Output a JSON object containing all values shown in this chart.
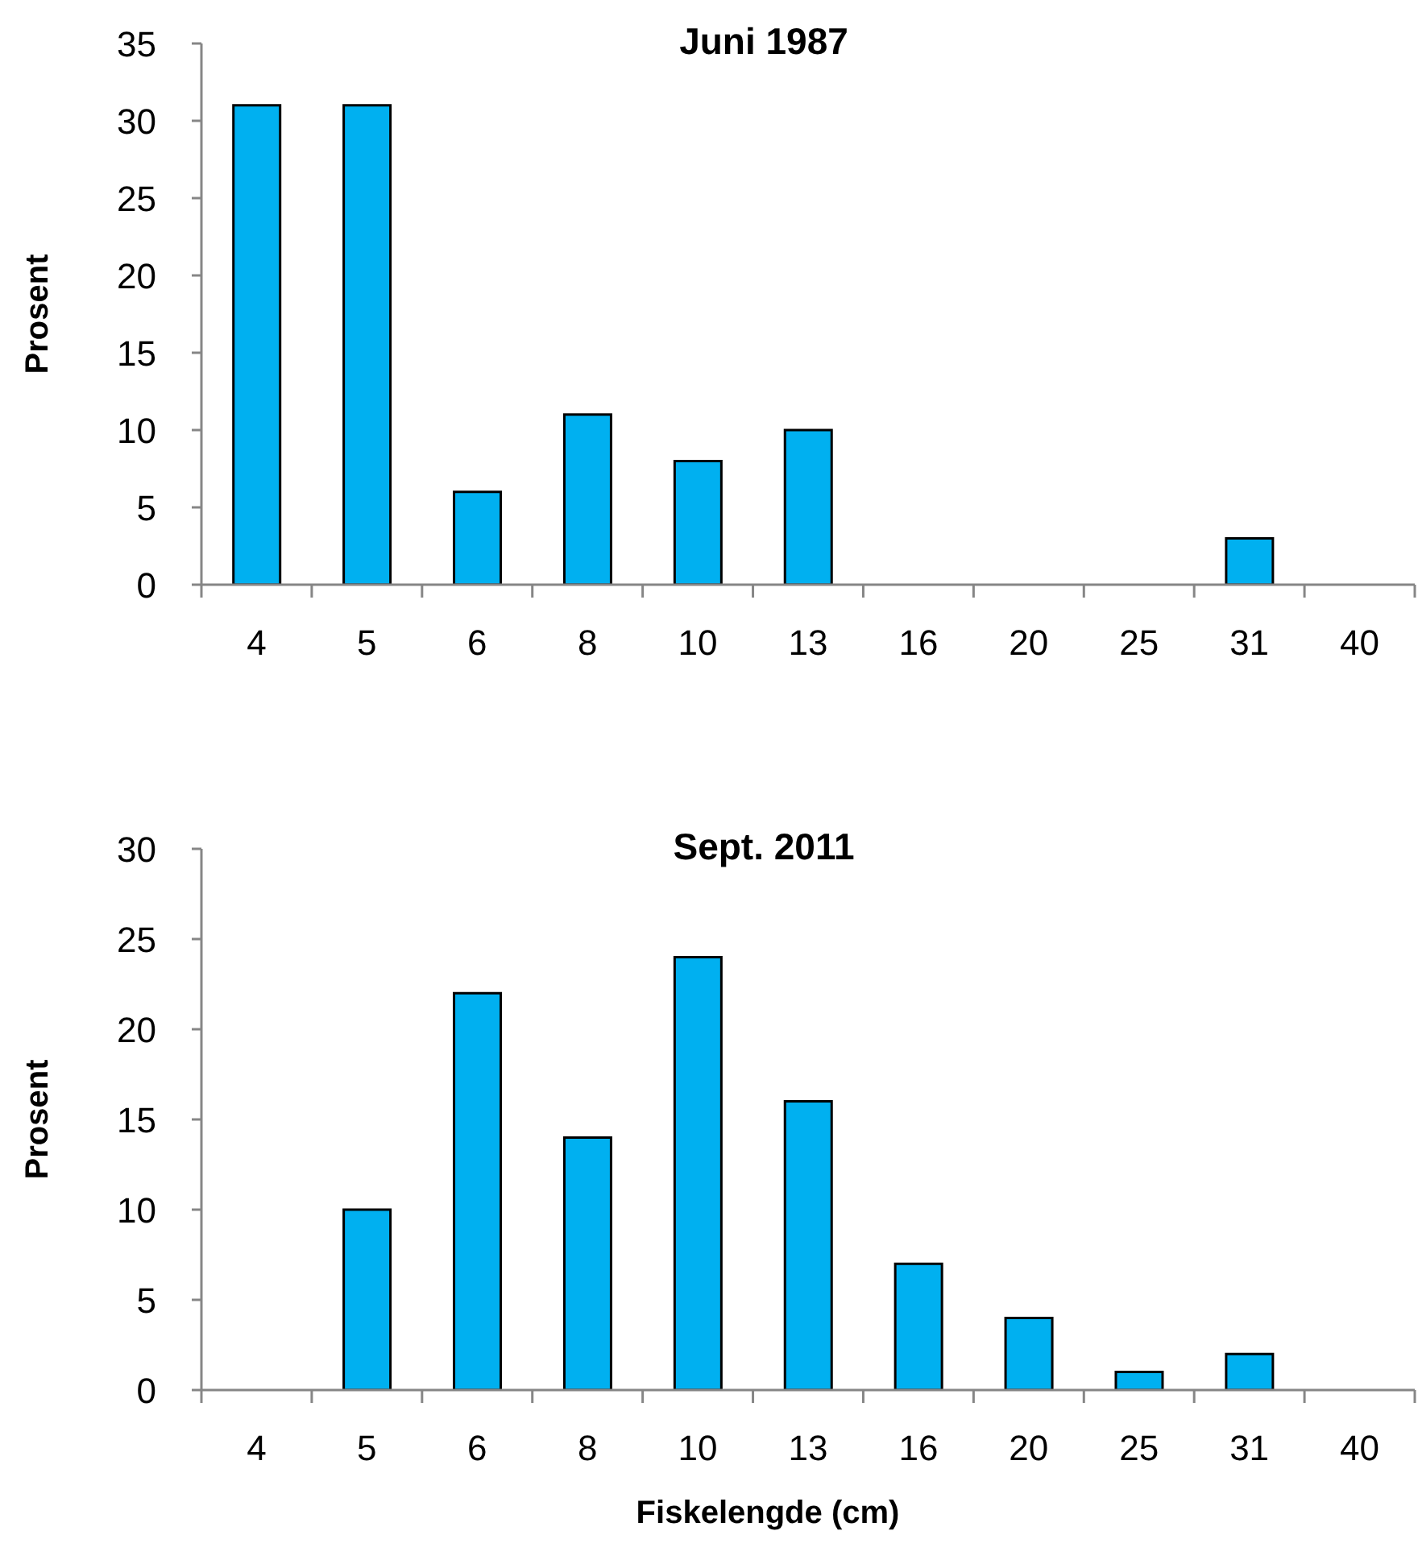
{
  "chart_data": [
    {
      "type": "bar",
      "title": "Juni 1987",
      "ylabel": "Prosent",
      "categories": [
        "4",
        "5",
        "6",
        "8",
        "10",
        "13",
        "16",
        "20",
        "25",
        "31",
        "40"
      ],
      "values": [
        31,
        31,
        6,
        11,
        8,
        10,
        0,
        0,
        0,
        3,
        0
      ],
      "color": "#00b0f0",
      "ylim": [
        0,
        35
      ],
      "yticks": [
        0,
        5,
        10,
        15,
        20,
        25,
        30,
        35
      ]
    },
    {
      "type": "bar",
      "title": "Sept. 2011",
      "ylabel": "Prosent",
      "xlabel": "Fiskelengde (cm)",
      "categories": [
        "4",
        "5",
        "6",
        "8",
        "10",
        "13",
        "16",
        "20",
        "25",
        "31",
        "40"
      ],
      "values": [
        0,
        10,
        22,
        14,
        24,
        16,
        7,
        4,
        1,
        2,
        0
      ],
      "color": "#00b0f0",
      "ylim": [
        0,
        30
      ],
      "yticks": [
        0,
        5,
        10,
        15,
        20,
        25,
        30
      ]
    }
  ]
}
